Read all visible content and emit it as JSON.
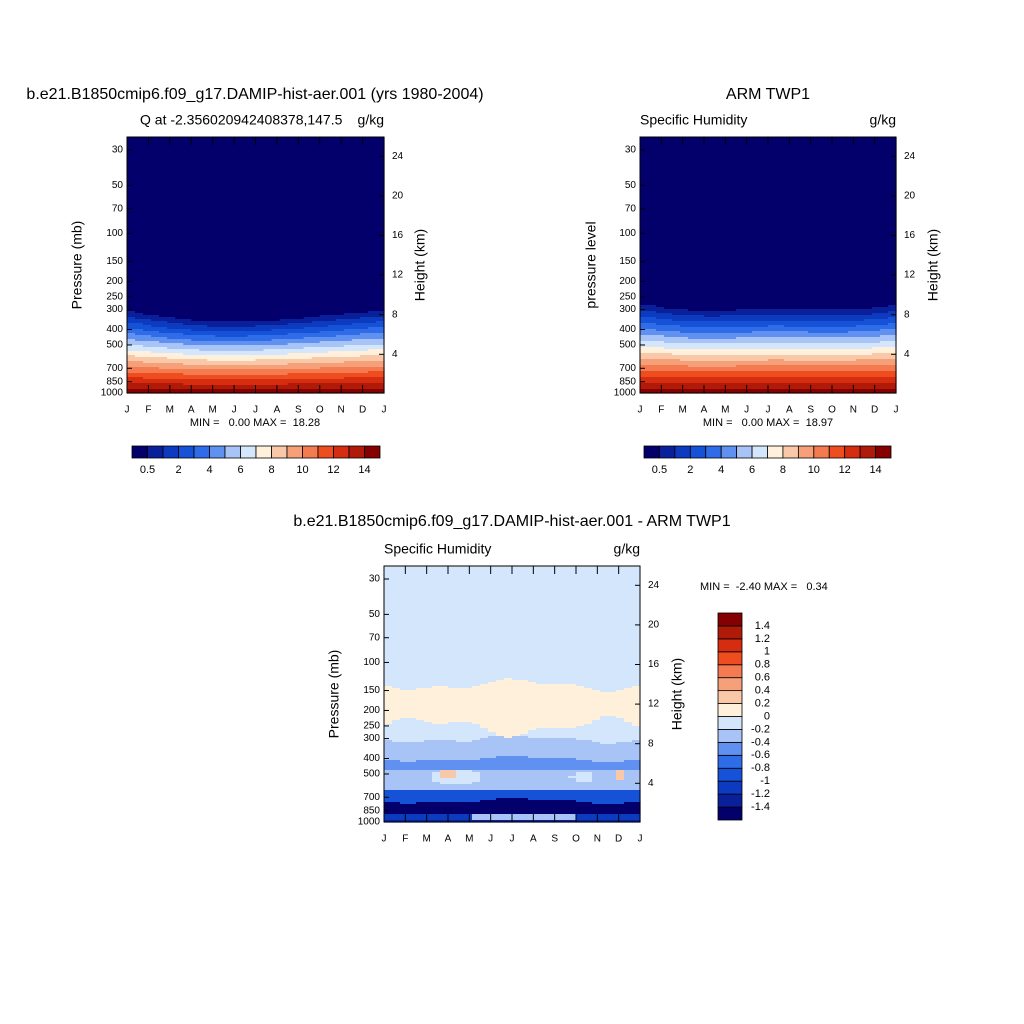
{
  "panels": [
    {
      "title": "b.e21.B1850cmip6.f09_g17.DAMIP-hist-aer.001 (yrs 1980-2004)",
      "subtitle_left": "Q at -2.356020942408378,147.5",
      "subtitle_right": "g/kg",
      "y_label": "Pressure (mb)",
      "y2_label": "Height (km)",
      "yticks": [
        30,
        50,
        70,
        100,
        150,
        200,
        250,
        300,
        400,
        500,
        700,
        850,
        1000
      ],
      "y2ticks": [
        24,
        20,
        16,
        12,
        8,
        4
      ],
      "months": [
        "J",
        "F",
        "M",
        "A",
        "M",
        "J",
        "J",
        "A",
        "S",
        "O",
        "N",
        "D",
        "J"
      ],
      "stats": "MIN =   0.00 MAX =  18.28",
      "colorbar": {
        "colors": [
          "#03006c",
          "#0a1f9a",
          "#0d3bc0",
          "#1552d8",
          "#2f6ce8",
          "#6090f0",
          "#a8c4f6",
          "#d4e6fb",
          "#fff0dc",
          "#f9c8a8",
          "#f6a07a",
          "#f47a50",
          "#ee4d20",
          "#d62d10",
          "#b01a08",
          "#850000"
        ],
        "labels": [
          0.5,
          2,
          4,
          6,
          8,
          10,
          12,
          14
        ]
      }
    },
    {
      "title": "ARM TWP1",
      "subtitle_left": "Specific Humidity",
      "subtitle_right": "g/kg",
      "y_label": "pressure level",
      "y2_label": "Height (km)",
      "yticks": [
        30,
        50,
        70,
        100,
        150,
        200,
        250,
        300,
        400,
        500,
        700,
        850,
        1000
      ],
      "y2ticks": [
        24,
        20,
        16,
        12,
        8,
        4
      ],
      "months": [
        "J",
        "F",
        "M",
        "A",
        "M",
        "J",
        "J",
        "A",
        "S",
        "O",
        "N",
        "D",
        "J"
      ],
      "stats": "MIN =   0.00 MAX =  18.97",
      "colorbar": {
        "colors": [
          "#03006c",
          "#0a1f9a",
          "#0d3bc0",
          "#1552d8",
          "#2f6ce8",
          "#6090f0",
          "#a8c4f6",
          "#d4e6fb",
          "#fff0dc",
          "#f9c8a8",
          "#f6a07a",
          "#f47a50",
          "#ee4d20",
          "#d62d10",
          "#b01a08",
          "#850000"
        ],
        "labels": [
          0.5,
          2,
          4,
          6,
          8,
          10,
          12,
          14
        ]
      }
    },
    {
      "title": "b.e21.B1850cmip6.f09_g17.DAMIP-hist-aer.001 - ARM TWP1",
      "subtitle_left": "Specific Humidity",
      "subtitle_right": "g/kg",
      "y_label": "Pressure (mb)",
      "y2_label": "Height (km)",
      "yticks": [
        30,
        50,
        70,
        100,
        150,
        200,
        250,
        300,
        400,
        500,
        700,
        850,
        1000
      ],
      "y2ticks": [
        24,
        20,
        16,
        12,
        8,
        4
      ],
      "months": [
        "J",
        "F",
        "M",
        "A",
        "M",
        "J",
        "J",
        "A",
        "S",
        "O",
        "N",
        "D",
        "J"
      ],
      "stats": "MIN =  -2.40 MAX =   0.34",
      "colorbar": {
        "colors": [
          "#03006c",
          "#0a1f9a",
          "#0d3bc0",
          "#1552d8",
          "#2f6ce8",
          "#6090f0",
          "#a8c4f6",
          "#d4e6fb",
          "#fff0dc",
          "#f9c8a8",
          "#f6a07a",
          "#f47a50",
          "#ee4d20",
          "#d62d10",
          "#b01a08",
          "#850000"
        ],
        "labels": [
          1.4,
          1.2,
          1,
          0.8,
          0.6,
          0.4,
          0.2,
          0,
          -0.2,
          -0.4,
          -0.6,
          -0.8,
          -1,
          -1.2,
          -1.4
        ]
      }
    }
  ]
}
